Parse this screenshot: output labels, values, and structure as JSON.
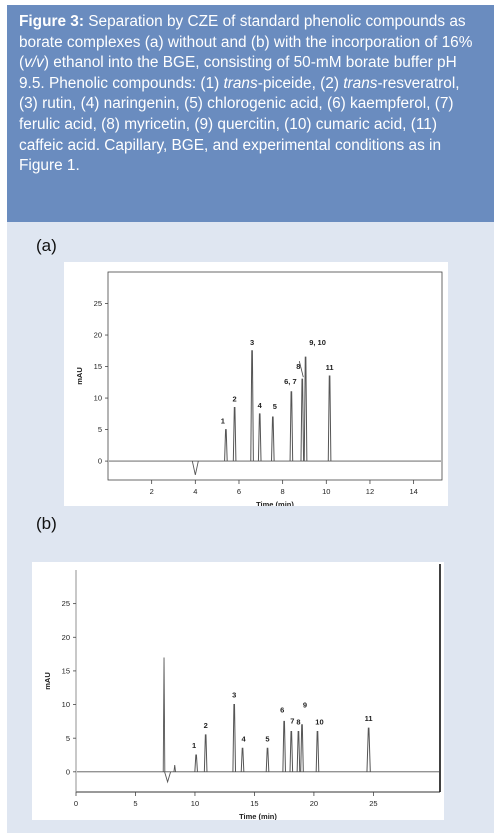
{
  "caption": {
    "figure": "Figure 3:",
    "t1": " Separation by CZE of standard phenolic compounds as borate complexes (a) without and (b) with the incorporation of 16% (",
    "vv": "v/v",
    "t2": ") ethanol into the BGE, consisting of 50-mM borate buffer pH 9.5. Phenolic compounds: (1) ",
    "trans1": "trans",
    "t3": "-piceide, (2) ",
    "trans2": "trans",
    "t4": "-resveratrol, (3) rutin, (4) naringenin, (5) chlorogenic acid, (6) kaempferol, (7) ferulic acid, (8) myricetin, (9) quercitin, (10) cumaric acid, (11) caffeic acid. Capillary, BGE, and experimental conditions as in Figure 1."
  },
  "chart_data": [
    {
      "type": "line",
      "panel_label": "(a)",
      "xlabel": "Time (min)",
      "ylabel": "mAU",
      "xlim": [
        0,
        15.3
      ],
      "ylim": [
        -3,
        30
      ],
      "xticks": [
        2,
        4,
        6,
        8,
        10,
        12,
        14
      ],
      "yticks": [
        0,
        5,
        10,
        15,
        20,
        25
      ],
      "baseline_y": 0,
      "dips": [
        {
          "x": 4.0,
          "y": -2.2
        }
      ],
      "peaks": [
        {
          "label": "1",
          "x": 5.4,
          "y": 5.0,
          "w": 0.05
        },
        {
          "label": "2",
          "x": 5.8,
          "y": 8.5,
          "w": 0.05
        },
        {
          "label": "3",
          "x": 6.6,
          "y": 17.5,
          "w": 0.05
        },
        {
          "label": "4",
          "x": 6.95,
          "y": 7.5,
          "w": 0.05
        },
        {
          "label": "5",
          "x": 7.55,
          "y": 7.0,
          "w": 0.05
        },
        {
          "label": "6, 7",
          "x": 8.4,
          "y": 11.0,
          "w": 0.06
        },
        {
          "label": "8",
          "x": 8.9,
          "y": 13.0,
          "w": 0.04
        },
        {
          "label": "9, 10",
          "x": 9.05,
          "y": 16.5,
          "w": 0.05
        },
        {
          "label": "11",
          "x": 10.15,
          "y": 13.5,
          "w": 0.06
        }
      ]
    },
    {
      "type": "line",
      "panel_label": "(b)",
      "xlabel": "Time (min)",
      "ylabel": "mAU",
      "xlim": [
        0,
        30.6
      ],
      "ylim": [
        -3,
        30
      ],
      "xticks": [
        0,
        5,
        10,
        15,
        20,
        25
      ],
      "yticks": [
        0,
        5,
        10,
        15,
        20,
        25
      ],
      "baseline_y": 0,
      "spikes": [
        {
          "x": 7.4,
          "y": 17.0
        },
        {
          "x": 8.3,
          "y": 1.0
        }
      ],
      "dips": [
        {
          "x": 7.7,
          "y": -1.5
        }
      ],
      "peaks": [
        {
          "label": "1",
          "x": 10.1,
          "y": 2.5,
          "w": 0.06
        },
        {
          "label": "2",
          "x": 10.9,
          "y": 5.5,
          "w": 0.07
        },
        {
          "label": "3",
          "x": 13.3,
          "y": 10.0,
          "w": 0.08
        },
        {
          "label": "4",
          "x": 14.0,
          "y": 3.5,
          "w": 0.07
        },
        {
          "label": "5",
          "x": 16.1,
          "y": 3.5,
          "w": 0.1
        },
        {
          "label": "6",
          "x": 17.5,
          "y": 7.5,
          "w": 0.08
        },
        {
          "label": "7",
          "x": 18.1,
          "y": 6.0,
          "w": 0.07
        },
        {
          "label": "8",
          "x": 18.7,
          "y": 6.0,
          "w": 0.07
        },
        {
          "label": "9",
          "x": 19.0,
          "y": 7.0,
          "w": 0.07
        },
        {
          "label": "10",
          "x": 20.3,
          "y": 6.0,
          "w": 0.09
        },
        {
          "label": "11",
          "x": 24.6,
          "y": 6.5,
          "w": 0.14
        }
      ]
    }
  ]
}
